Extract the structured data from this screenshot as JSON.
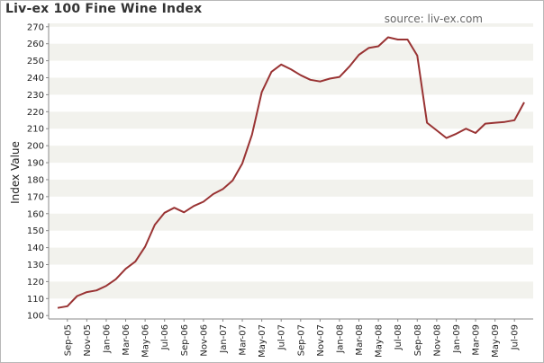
{
  "chart_data": {
    "type": "line",
    "title": "Liv-ex 100 Fine Wine Index",
    "source": "source: liv-ex.com",
    "xlabel": "",
    "ylabel": "Index Value",
    "ylim": [
      98,
      272
    ],
    "yticks": [
      100,
      110,
      120,
      130,
      140,
      150,
      160,
      170,
      180,
      190,
      200,
      210,
      220,
      230,
      240,
      250,
      260,
      270
    ],
    "xtick_labels": [
      "Sep-05",
      "Nov-05",
      "Jan-06",
      "Mar-06",
      "May-06",
      "Jul-06",
      "Sep-06",
      "Nov-06",
      "Jan-07",
      "Mar-07",
      "May-07",
      "Jul-07",
      "Sep-07",
      "Nov-07",
      "Jan-08",
      "Mar-08",
      "May-08",
      "Jul-08",
      "Sep-08",
      "Nov-08",
      "Jan-09",
      "Mar-09",
      "May-09",
      "Jul-09"
    ],
    "grid": "horizontal alternating bands",
    "line_color": "#993333",
    "band_color": "#f2f2ed",
    "series": [
      {
        "name": "",
        "x": [
          "Aug-05",
          "Sep-05",
          "Oct-05",
          "Nov-05",
          "Dec-05",
          "Jan-06",
          "Feb-06",
          "Mar-06",
          "Apr-06",
          "May-06",
          "Jun-06",
          "Jul-06",
          "Aug-06",
          "Sep-06",
          "Oct-06",
          "Nov-06",
          "Dec-06",
          "Jan-07",
          "Feb-07",
          "Mar-07",
          "Apr-07",
          "May-07",
          "Jun-07",
          "Jul-07",
          "Aug-07",
          "Sep-07",
          "Oct-07",
          "Nov-07",
          "Dec-07",
          "Jan-08",
          "Feb-08",
          "Mar-08",
          "Apr-08",
          "May-08",
          "Jun-08",
          "Jul-08",
          "Aug-08",
          "Sep-08",
          "Oct-08",
          "Nov-08",
          "Dec-08",
          "Jan-09",
          "Feb-09",
          "Mar-09",
          "Apr-09",
          "May-09",
          "Jun-09",
          "Jul-09",
          "Aug-09"
        ],
        "values": [
          104.5,
          105.5,
          111.5,
          113.8,
          114.8,
          117.5,
          121.5,
          127.5,
          131.8,
          140.5,
          153.5,
          160.5,
          163.5,
          160.8,
          164.5,
          167.0,
          171.5,
          174.5,
          179.5,
          189.5,
          206.5,
          231.5,
          243.5,
          247.8,
          245.0,
          241.5,
          238.8,
          237.8,
          239.5,
          240.5,
          246.5,
          253.5,
          257.5,
          258.5,
          263.8,
          262.5,
          262.5,
          253.0,
          213.5,
          209.0,
          204.5,
          207.0,
          210.0,
          207.5,
          213.0,
          213.5,
          214.0,
          215.0,
          225.5
        ]
      }
    ]
  }
}
